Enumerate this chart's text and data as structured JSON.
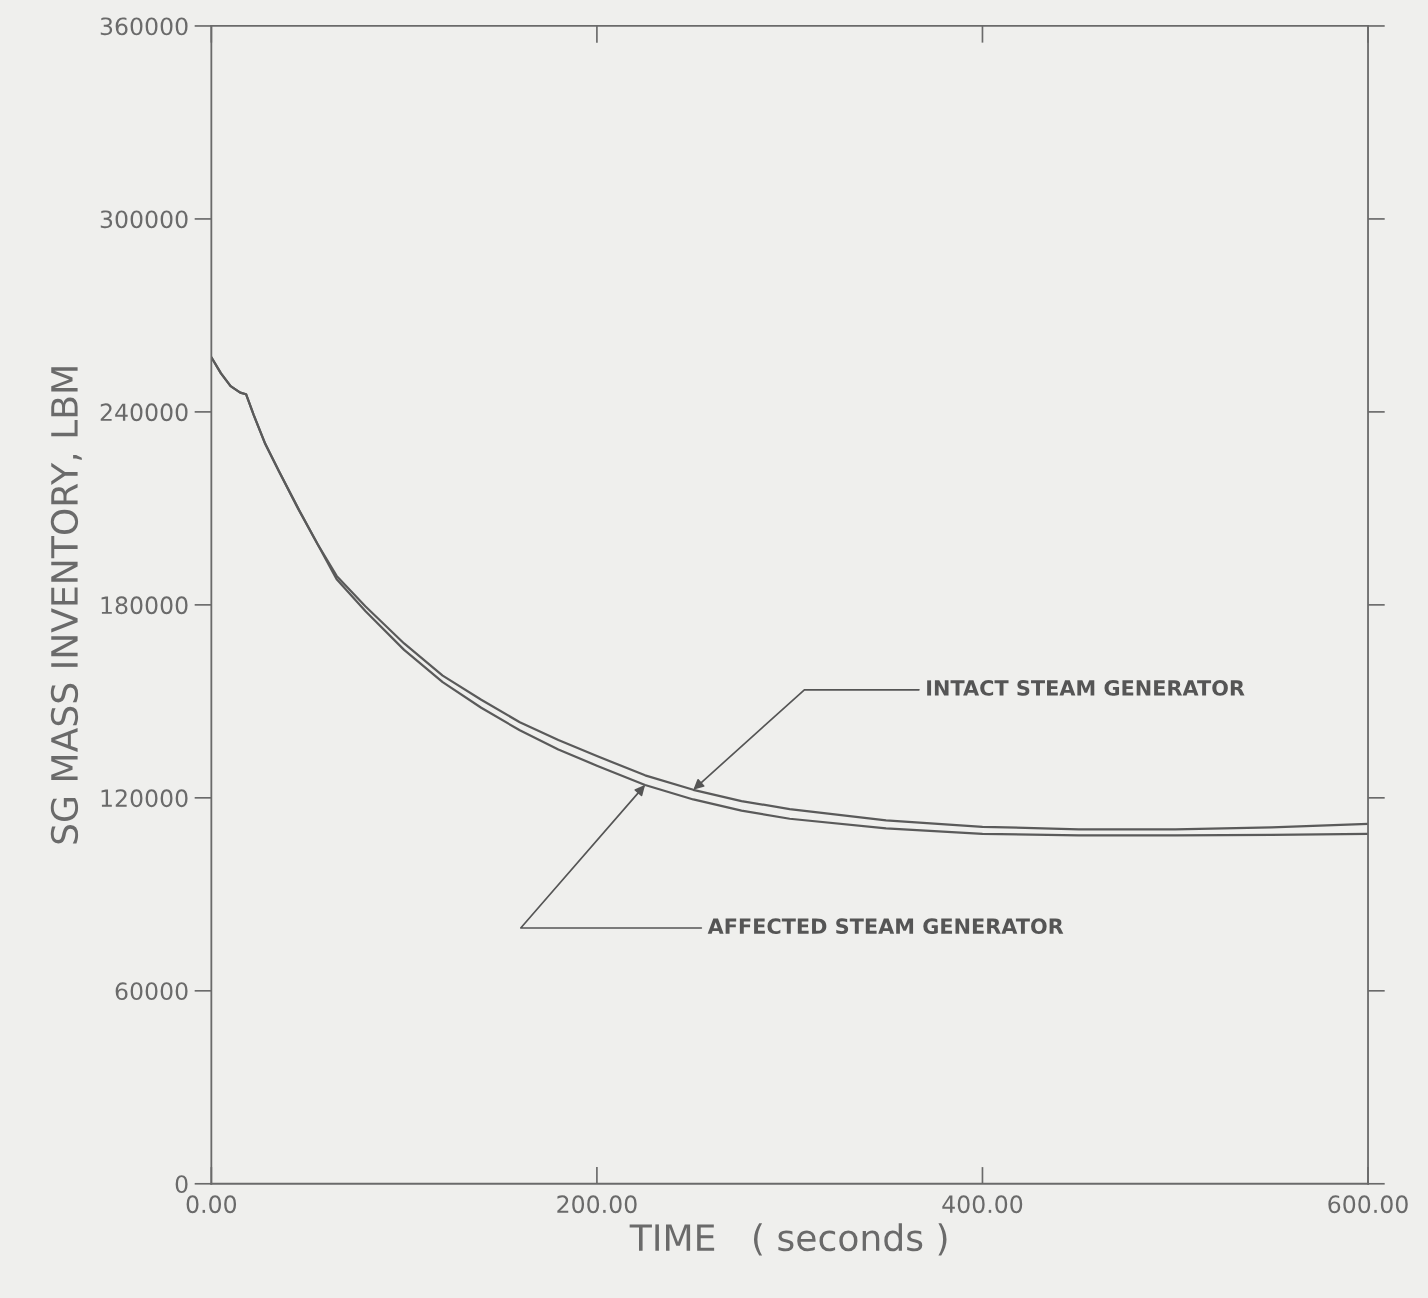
{
  "chart_data": {
    "type": "line",
    "xlabel": "TIME   ( seconds )",
    "ylabel": "SG MASS INVENTORY, LBM",
    "xlim": [
      0,
      600
    ],
    "ylim": [
      0,
      360000
    ],
    "xticks": [
      {
        "value": 0,
        "label": "0.00"
      },
      {
        "value": 200,
        "label": "200.00"
      },
      {
        "value": 400,
        "label": "400.00"
      },
      {
        "value": 600,
        "label": "600.00"
      }
    ],
    "yticks": [
      0,
      60000,
      120000,
      180000,
      240000,
      300000,
      360000
    ],
    "x": [
      0,
      5,
      10,
      15,
      18,
      22,
      28,
      35,
      45,
      55,
      65,
      80,
      100,
      120,
      140,
      160,
      180,
      200,
      225,
      250,
      275,
      300,
      350,
      400,
      450,
      500,
      550,
      600
    ],
    "series": [
      {
        "color": "#5a5a5a",
        "values": [
          257000,
          252000,
          248000,
          246000,
          245500,
          239000,
          230000,
          221600,
          210000,
          199000,
          189000,
          179500,
          168000,
          158000,
          150500,
          143500,
          138000,
          133000,
          127000,
          122500,
          119000,
          116500,
          113000,
          111000,
          110200,
          110200,
          110800,
          111900
        ]
      },
      {
        "color": "#5a5a5a",
        "values": [
          257000,
          252000,
          248000,
          246000,
          245500,
          239000,
          230000,
          221600,
          210000,
          199000,
          188000,
          178000,
          166000,
          156000,
          148000,
          141000,
          135000,
          130000,
          124000,
          119500,
          116000,
          113500,
          110500,
          108800,
          108300,
          108300,
          108500,
          108800
        ]
      }
    ],
    "annotations": [
      {
        "text": "INTACT STEAM GENERATOR",
        "x": 250,
        "y": 122500
      },
      {
        "text": "AFFECTED STEAM GENERATOR",
        "x": 225,
        "y": 124000
      }
    ],
    "grid": false,
    "legend": false,
    "marker": "none",
    "line_style": "solid"
  }
}
